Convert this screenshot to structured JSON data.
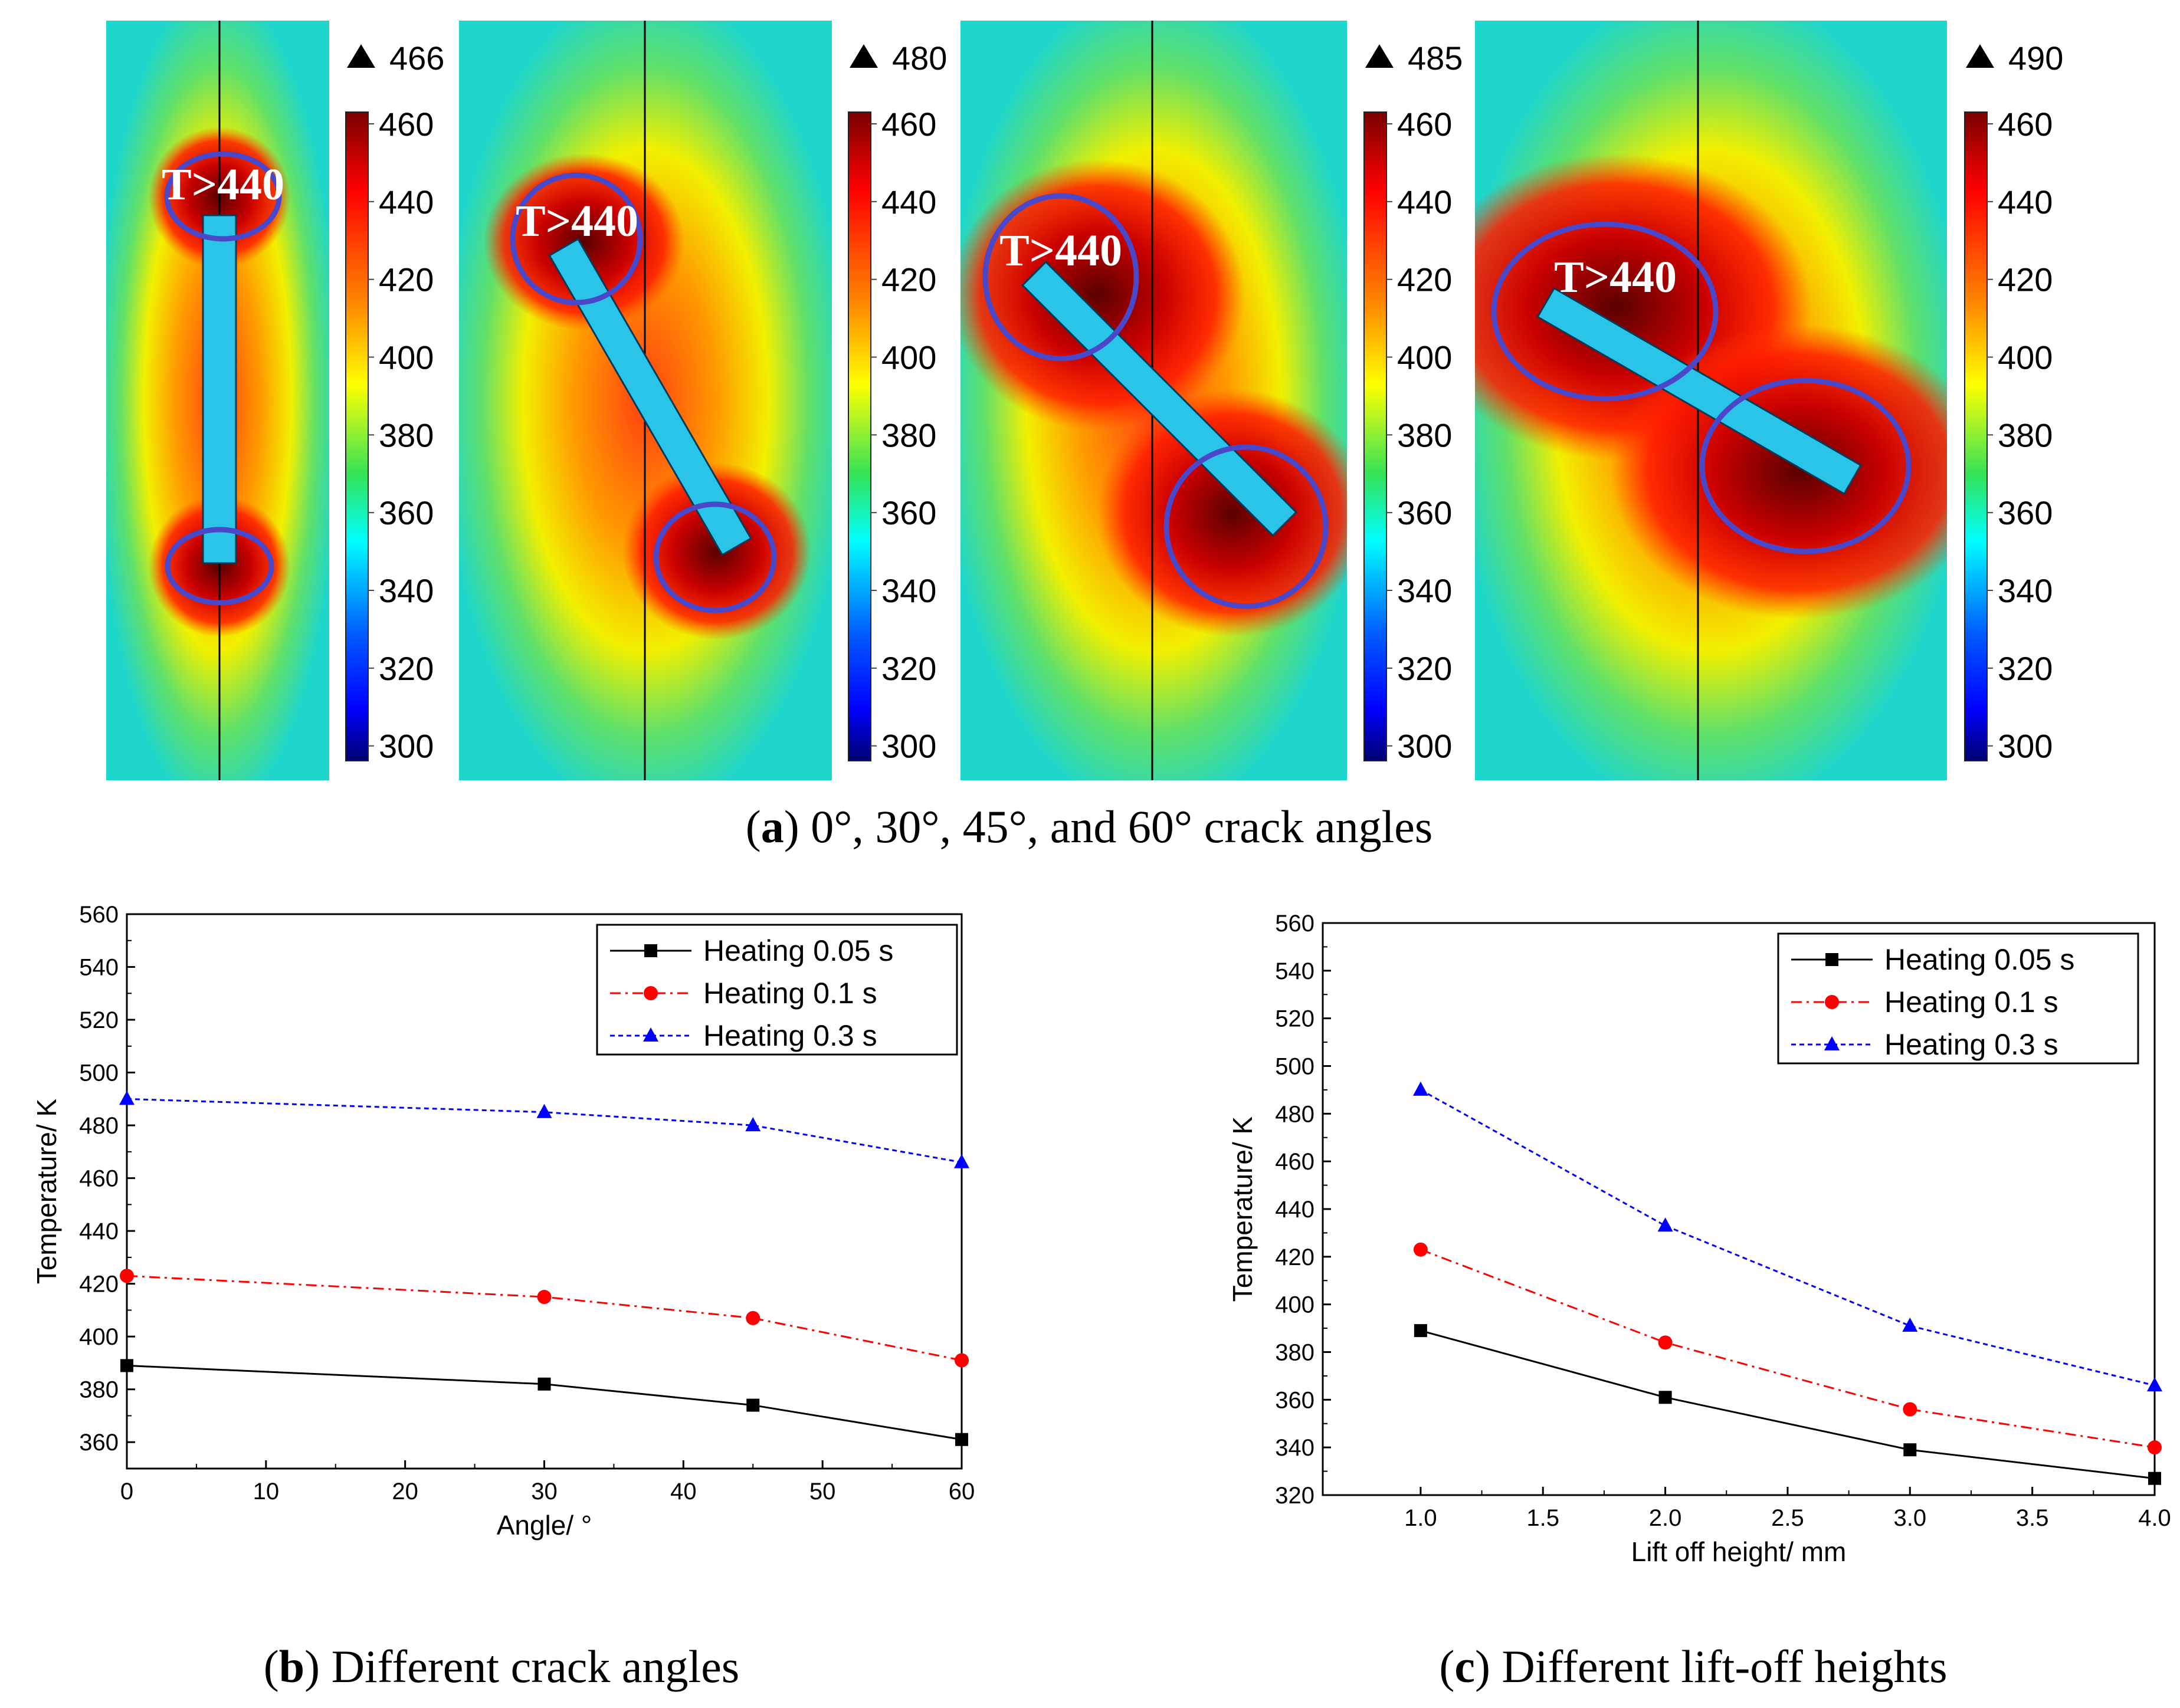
{
  "heatmaps": {
    "caption_letter": "a",
    "caption_text": "0°, 30°, 45°, and 60° crack angles",
    "label": "T>440",
    "scale_ticks": [
      "460",
      "440",
      "420",
      "400",
      "380",
      "360",
      "340",
      "320",
      "300"
    ],
    "panels": [
      {
        "angle": 0,
        "max_label": "466"
      },
      {
        "angle": 30,
        "max_label": "480"
      },
      {
        "angle": 45,
        "max_label": "485"
      },
      {
        "angle": 60,
        "max_label": "490"
      }
    ],
    "colors": {
      "line": "#000000",
      "circle": "#4a47c9",
      "crack": "#29c4e8",
      "label": "#ffffff"
    }
  },
  "legend_labels": [
    "Heating 0.05 s",
    "Heating 0.1 s",
    "Heating 0.3 s"
  ],
  "chart_data": [
    {
      "type": "line",
      "caption_letter": "b",
      "caption_text": "Different crack angles",
      "xlabel": "Angle/ °",
      "ylabel": "Temperature/ K",
      "xlim": [
        0,
        60
      ],
      "ylim": [
        350,
        560
      ],
      "x_ticks": [
        "0",
        "10",
        "20",
        "30",
        "40",
        "50",
        "60"
      ],
      "y_ticks": [
        "360",
        "380",
        "400",
        "420",
        "440",
        "460",
        "480",
        "500",
        "520",
        "540",
        "560"
      ],
      "x": [
        0,
        30,
        45,
        60
      ],
      "series": [
        {
          "name": "Heating 0.05 s",
          "values": [
            389,
            382,
            374,
            361
          ],
          "color": "#000000",
          "marker": "square",
          "dash": "solid"
        },
        {
          "name": "Heating 0.1 s",
          "values": [
            423,
            415,
            407,
            391
          ],
          "color": "#ff0000",
          "marker": "circle",
          "dash": "dashdot"
        },
        {
          "name": "Heating 0.3 s",
          "values": [
            490,
            485,
            480,
            466
          ],
          "color": "#0000ff",
          "marker": "triangle",
          "dash": "dotted"
        }
      ],
      "legend": "top-right"
    },
    {
      "type": "line",
      "caption_letter": "c",
      "caption_text": "Different lift-off heights",
      "xlabel": "Lift off height/ mm",
      "ylabel": "Temperature/ K",
      "xlim": [
        0.6,
        4.0
      ],
      "ylim": [
        320,
        560
      ],
      "x_ticks": [
        "1.0",
        "1.5",
        "2.0",
        "2.5",
        "3.0",
        "3.5",
        "4.0"
      ],
      "y_ticks": [
        "320",
        "340",
        "360",
        "380",
        "400",
        "420",
        "440",
        "460",
        "480",
        "500",
        "520",
        "540",
        "560"
      ],
      "x": [
        1.0,
        2.0,
        3.0,
        4.0
      ],
      "series": [
        {
          "name": "Heating 0.05 s",
          "values": [
            389,
            361,
            339,
            327
          ],
          "color": "#000000",
          "marker": "square",
          "dash": "solid"
        },
        {
          "name": "Heating 0.1 s",
          "values": [
            423,
            384,
            356,
            340
          ],
          "color": "#ff0000",
          "marker": "circle",
          "dash": "dashdot"
        },
        {
          "name": "Heating 0.3 s",
          "values": [
            490,
            433,
            391,
            366
          ],
          "color": "#0000ff",
          "marker": "triangle",
          "dash": "dotted"
        }
      ],
      "legend": "top-right"
    }
  ]
}
